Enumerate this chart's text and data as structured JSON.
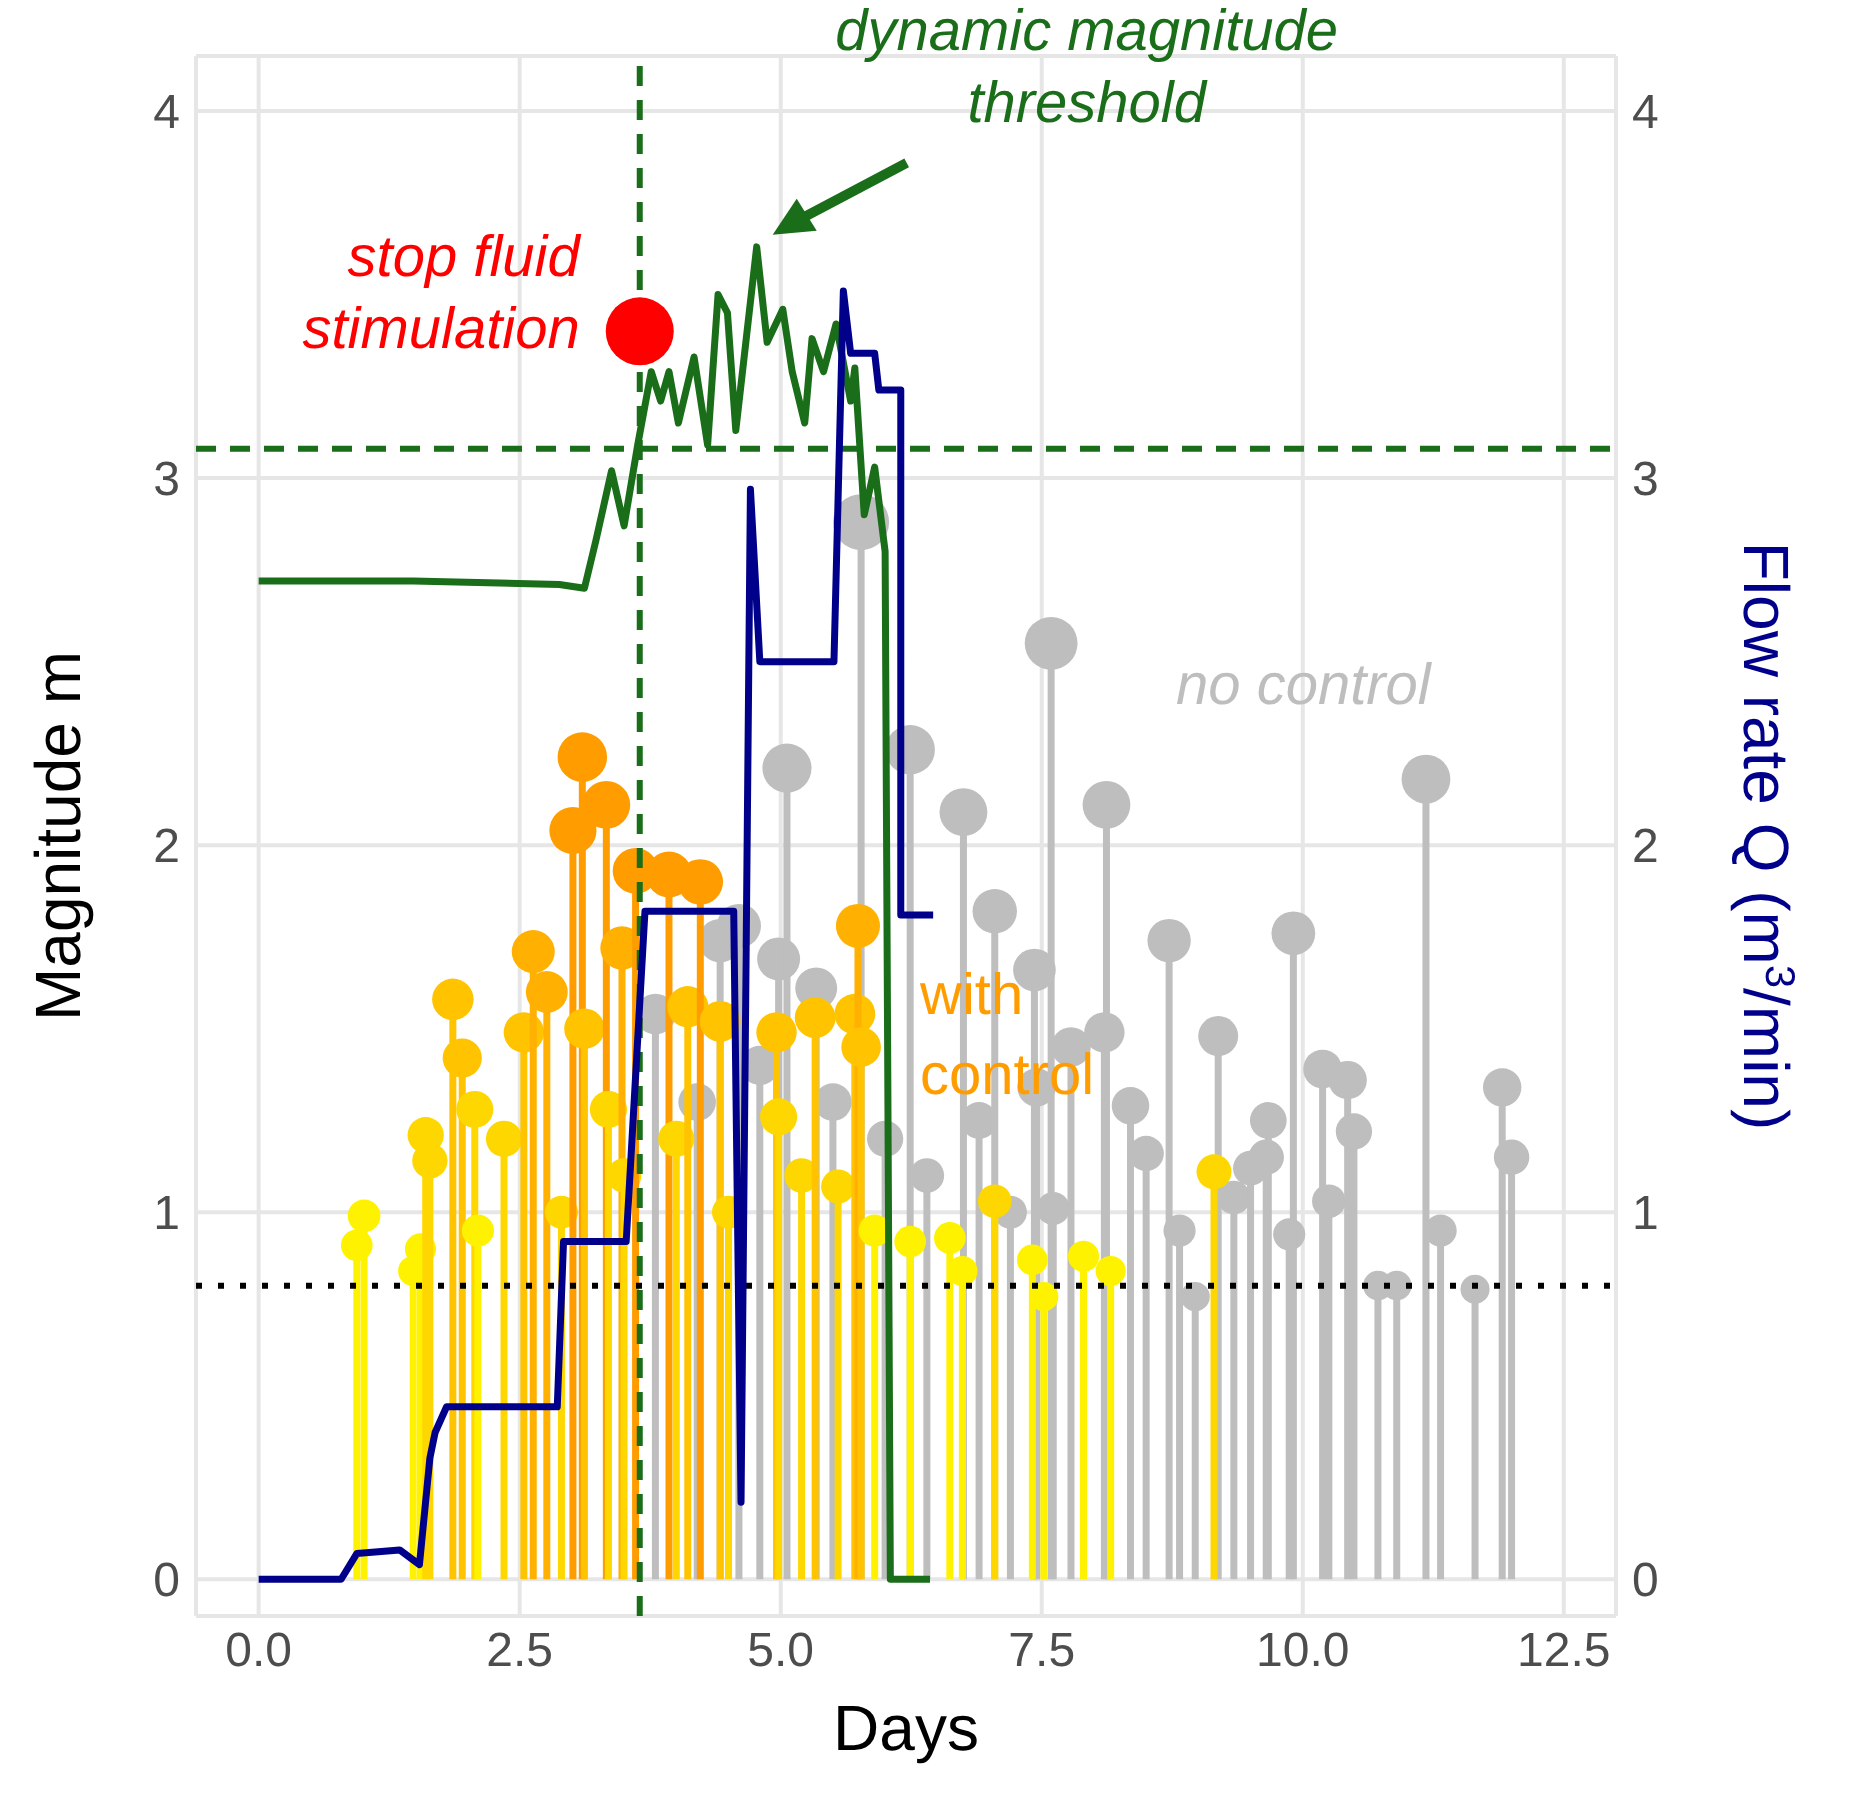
{
  "chart_data": {
    "type": "lollipop",
    "xlabel": "Days",
    "ylabel": "Magnitude m",
    "y2label": "Flow rate Q (m$^{3}$/min)",
    "xlim": [
      -0.6,
      13
    ],
    "xticks": [
      {
        "value": 0,
        "label": "0.0"
      },
      2.5,
      {
        "value": 5,
        "label": "5.0"
      },
      7.5,
      {
        "value": 10,
        "label": "10.0"
      },
      12.5
    ],
    "ylim": [
      -0.1,
      4.15
    ],
    "yticks": [
      0,
      1,
      2,
      3,
      4
    ],
    "y2lim": [
      -0.1,
      4.15
    ],
    "y2ticks": [
      0,
      1,
      2,
      3,
      4
    ],
    "grid": true,
    "series": [
      {
        "name": "no control",
        "color": "#bebebe",
        "x": [
          3.8,
          4.2,
          4.42,
          4.6,
          4.8,
          4.98,
          5.06,
          5.34,
          5.5,
          5.77,
          6.0,
          6.15,
          6.24,
          6.4,
          6.75,
          6.9,
          7.05,
          7.2,
          7.43,
          7.45,
          7.59,
          7.61,
          7.78,
          7.9,
          8.1,
          8.12,
          8.3,
          8.35,
          8.5,
          8.72,
          8.82,
          8.97,
          9.19,
          9.34,
          9.5,
          9.65,
          9.67,
          9.87,
          9.91,
          10.19,
          10.25,
          10.43,
          10.49,
          10.72,
          10.9,
          11.18,
          11.32,
          11.65,
          11.91,
          12.0
        ],
        "values": [
          1.54,
          1.3,
          1.74,
          1.78,
          1.4,
          1.69,
          2.21,
          1.61,
          1.3,
          2.88,
          1.2,
          null,
          2.26,
          1.1,
          2.09,
          1.25,
          1.82,
          1.0,
          1.66,
          1.34,
          2.55,
          1.01,
          1.45,
          null,
          1.49,
          2.11,
          null,
          1.29,
          1.16,
          1.74,
          0.95,
          0.77,
          1.48,
          1.04,
          1.12,
          1.15,
          1.25,
          0.94,
          1.76,
          1.39,
          1.03,
          1.36,
          1.22,
          0.8,
          0.8,
          2.18,
          0.95,
          0.79,
          1.34,
          1.15
        ],
        "sizes": [
          0.53,
          0.45,
          0.6,
          0.62,
          0.49,
          0.59,
          0.77,
          0.56,
          0.45,
          1,
          0.42,
          null,
          0.78,
          0.38,
          0.73,
          0.43,
          0.63,
          0.35,
          0.58,
          0.47,
          0.89,
          0.35,
          0.5,
          null,
          0.52,
          0.73,
          null,
          0.45,
          0.4,
          0.6,
          0.33,
          0.27,
          0.51,
          0.36,
          0.39,
          0.4,
          0.43,
          0.33,
          0.61,
          0.48,
          0.36,
          0.47,
          0.42,
          0.28,
          0.28,
          0.76,
          0.33,
          0.27,
          0.47,
          0.4
        ]
      },
      {
        "name": "with control",
        "color": "#ff9d00",
        "x": [
          0.94,
          1.01,
          1.48,
          1.55,
          1.6,
          1.64,
          1.86,
          1.95,
          2.07,
          2.1,
          2.33,
          2.35,
          2.54,
          2.63,
          2.76,
          2.9,
          3.01,
          3.1,
          3.12,
          3.33,
          3.35,
          3.48,
          3.5,
          3.61,
          3.93,
          4.0,
          4.11,
          4.23,
          4.42,
          4.5,
          4.96,
          4.98,
          5.2,
          5.33,
          5.55,
          5.71,
          5.74,
          5.77,
          5.9,
          6.24,
          6.62,
          6.74,
          7.05,
          7.41,
          7.52,
          7.9,
          8.16,
          9.15
        ],
        "values": [
          0.91,
          0.99,
          0.84,
          0.9,
          1.21,
          1.14,
          1.58,
          1.42,
          1.28,
          0.95,
          null,
          1.2,
          1.49,
          1.71,
          1.6,
          1.0,
          2.04,
          2.24,
          1.5,
          2.11,
          1.28,
          1.72,
          1.1,
          1.93,
          1.92,
          1.2,
          1.56,
          1.9,
          1.52,
          1.0,
          1.49,
          1.26,
          1.1,
          1.53,
          1.07,
          1.54,
          1.78,
          1.45,
          0.95,
          0.92,
          0.93,
          0.84,
          1.03,
          0.87,
          0.77,
          0.88,
          0.84,
          1.11
        ],
        "sizes": [
          0.32,
          0.34,
          0.29,
          0.31,
          0.42,
          0.4,
          0.55,
          0.49,
          0.44,
          0.33,
          null,
          0.42,
          0.52,
          0.59,
          0.56,
          0.35,
          0.71,
          0.78,
          0.52,
          0.73,
          0.44,
          0.6,
          0.38,
          0.67,
          0.67,
          0.42,
          0.54,
          0.66,
          0.53,
          0.35,
          0.52,
          0.44,
          0.38,
          0.53,
          0.37,
          0.53,
          0.62,
          0.5,
          0.33,
          0.32,
          0.32,
          0.29,
          0.36,
          0.3,
          0.27,
          0.31,
          0.29,
          0.39
        ],
        "colors": [
          "#fff200",
          "#fff200",
          "#fff200",
          "#fff200",
          "#ffd700",
          "#ffd700",
          "#ffc300",
          "#ffc300",
          "#ffd700",
          "#fff200",
          null,
          "#ffd700",
          "#ffc300",
          "#ffb000",
          "#ffb000",
          "#ffd700",
          "#ff9d00",
          "#ff9d00",
          "#ffc300",
          "#ff9d00",
          "#ffd700",
          "#ffb000",
          "#ffd700",
          "#ff9d00",
          "#ff9d00",
          "#ffd700",
          "#ffc300",
          "#ff9d00",
          "#ffc300",
          "#ffd700",
          "#ffc300",
          "#ffd700",
          "#ffd700",
          "#ffc300",
          "#ffd700",
          "#ffc300",
          "#ffb000",
          "#ffc300",
          "#fff200",
          "#fff200",
          "#fff200",
          "#fff200",
          "#ffd700",
          "#fff200",
          "#fff200",
          "#fff200",
          "#fff200",
          "#ffd700"
        ]
      },
      {
        "type": "line",
        "color": "#1a6e1a",
        "x": [
          0,
          1.48,
          2.88,
          3.12,
          3.23,
          3.38,
          3.5,
          3.63,
          3.76,
          3.85,
          3.93,
          4.02,
          4.17,
          4.3,
          4.4,
          4.49,
          4.57,
          4.67,
          4.77,
          4.87,
          5.02,
          5.11,
          5.23,
          5.3,
          5.41,
          5.53,
          5.67,
          5.71,
          5.8,
          5.9,
          6.0,
          6.05,
          6.43
        ],
        "values": [
          2.72,
          2.72,
          2.71,
          2.7,
          2.83,
          3.02,
          2.87,
          3.09,
          3.29,
          3.21,
          3.29,
          3.15,
          3.33,
          3.09,
          3.5,
          3.45,
          3.13,
          3.38,
          3.63,
          3.37,
          3.46,
          3.29,
          3.15,
          3.38,
          3.29,
          3.42,
          3.21,
          3.3,
          2.9,
          3.03,
          2.8,
          0,
          0
        ]
      },
      {
        "type": "line",
        "axis": "y2",
        "color": "#00008b",
        "x": [
          0,
          0.79,
          0.94,
          1.35,
          1.54,
          1.64,
          1.69,
          1.8,
          2.86,
          2.92,
          3.52,
          3.7,
          4.55,
          4.62,
          4.71,
          4.8,
          5.51,
          5.6,
          5.67,
          5.9,
          5.94,
          6.15,
          6.15,
          6.46
        ],
        "values": [
          0,
          0,
          0.07,
          0.08,
          0.04,
          0.33,
          0.4,
          0.47,
          0.47,
          0.92,
          0.92,
          1.82,
          1.82,
          0.21,
          2.97,
          2.5,
          2.5,
          3.51,
          3.34,
          3.34,
          3.24,
          3.24,
          1.81,
          1.81
        ]
      },
      {
        "type": "scatter",
        "color": "#ff0000",
        "x": [
          3.65
        ],
        "values": [
          3.4
        ]
      }
    ],
    "ref_lines": [
      {
        "axis": "x",
        "value": 3.65,
        "color": "#1a6e1a",
        "line_style": "dashed"
      },
      {
        "axis": "y",
        "value": 3.08,
        "color": "#1a6e1a",
        "line_style": "dashed"
      },
      {
        "axis": "y",
        "value": 0.8,
        "color": "#000000",
        "line_style": "dotted"
      }
    ],
    "annotations": [
      {
        "text": "stop fluid stimulation",
        "x": 3.65,
        "y": 3.4
      },
      {
        "text": "dynamic magnitude threshold",
        "x": 4.77,
        "y": 3.63
      }
    ]
  }
}
